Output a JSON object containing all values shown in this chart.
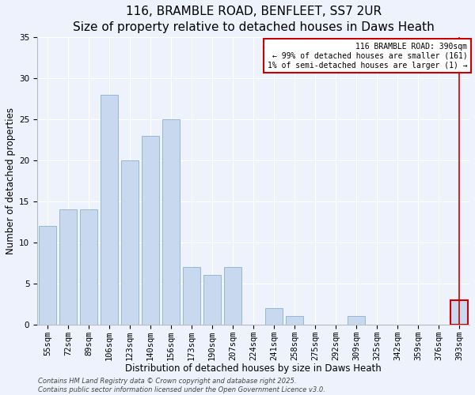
{
  "title": "116, BRAMBLE ROAD, BENFLEET, SS7 2UR",
  "subtitle": "Size of property relative to detached houses in Daws Heath",
  "xlabel": "Distribution of detached houses by size in Daws Heath",
  "ylabel": "Number of detached properties",
  "categories": [
    "55sqm",
    "72sqm",
    "89sqm",
    "106sqm",
    "123sqm",
    "140sqm",
    "156sqm",
    "173sqm",
    "190sqm",
    "207sqm",
    "224sqm",
    "241sqm",
    "258sqm",
    "275sqm",
    "292sqm",
    "309sqm",
    "325sqm",
    "342sqm",
    "359sqm",
    "376sqm",
    "393sqm"
  ],
  "values": [
    12,
    14,
    14,
    28,
    20,
    23,
    25,
    7,
    6,
    7,
    0,
    2,
    1,
    0,
    0,
    1,
    0,
    0,
    0,
    0,
    3
  ],
  "bar_color": "#c8d8ee",
  "bar_edgecolor": "#8ab0d0",
  "highlight_index": 20,
  "highlight_color": "#c8d8ee",
  "highlight_edgecolor": "#cc0000",
  "vline_color": "#cc0000",
  "ylim": [
    0,
    35
  ],
  "yticks": [
    0,
    5,
    10,
    15,
    20,
    25,
    30,
    35
  ],
  "annotation_title": "116 BRAMBLE ROAD: 390sqm",
  "annotation_line1": "← 99% of detached houses are smaller (161)",
  "annotation_line2": "1% of semi-detached houses are larger (1) →",
  "annotation_box_color": "#cc0000",
  "footnote1": "Contains HM Land Registry data © Crown copyright and database right 2025.",
  "footnote2": "Contains public sector information licensed under the Open Government Licence v3.0.",
  "background_color": "#eef2fc",
  "grid_color": "#ffffff",
  "title_fontsize": 11,
  "subtitle_fontsize": 9,
  "axis_label_fontsize": 8.5,
  "tick_fontsize": 7.5,
  "annotation_fontsize": 7,
  "footnote_fontsize": 6
}
